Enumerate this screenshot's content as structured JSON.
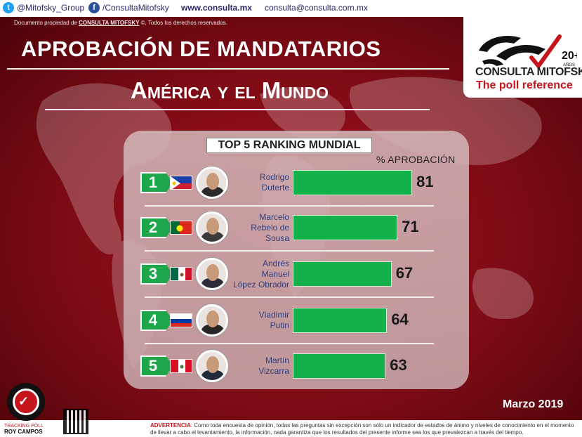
{
  "header": {
    "twitter": "@Mitofsky_Group",
    "facebook": "/ConsultaMitofsky",
    "website": "www.consulta.mx",
    "email": "consulta@consulta.com.mx",
    "doc_prefix": "Documento propiedad de ",
    "doc_brand": "CONSULTA MITOFSKY",
    "doc_suffix": " ©, Todos los derechos reservados."
  },
  "titles": {
    "main": "APROBACIÓN DE MANDATARIOS",
    "sub": "América y el Mundo"
  },
  "logo": {
    "anniversary": "20+",
    "anniversary_word": "AÑOS",
    "name": "CONSULTA MITOFSKY",
    "tagline": "The poll reference"
  },
  "chart_data": {
    "type": "bar",
    "title": "TOP 5 RANKING MUNDIAL",
    "ylabel": "% APROBACIÓN",
    "categories": [
      "Rodrigo Duterte",
      "Marcelo Rebelo de Sousa",
      "Andrés Manuel López Obrador",
      "Vladimir Putin",
      "Martín Vizcarra"
    ],
    "ranks": [
      "1",
      "2",
      "3",
      "4",
      "5"
    ],
    "name_lines": [
      [
        "Rodrigo",
        "Duterte"
      ],
      [
        "Marcelo",
        "Rebelo de",
        "Sousa"
      ],
      [
        "Andrés",
        "Manuel",
        "López Obrador"
      ],
      [
        "Vladimir",
        "Putin"
      ],
      [
        "Martín",
        "Vizcarra"
      ]
    ],
    "flags": [
      "philippines-flag",
      "portugal-flag",
      "mexico-flag",
      "russia-flag",
      "peru-flag"
    ],
    "values": [
      81,
      71,
      67,
      64,
      63
    ],
    "value_labels": [
      "81",
      "71",
      "67",
      "64",
      "63"
    ],
    "bar_color": "#14b04a"
  },
  "footer": {
    "date": "Marzo 2019",
    "warning_label": "ADVERTENCIA",
    "warning_text": ": Como toda encuesta de opinión, todas las preguntas sin excepción son sólo un indicador de estados de ánimo y niveles de conocimiento en el momento de llevar a cabo el levantamiento, la información, nada garantiza que los resultados del presente informe sea los que prevalezcan a través del tiempo.",
    "tracking_line1": "TRACKING POLL",
    "tracking_line2": "ROY CAMPOS"
  }
}
